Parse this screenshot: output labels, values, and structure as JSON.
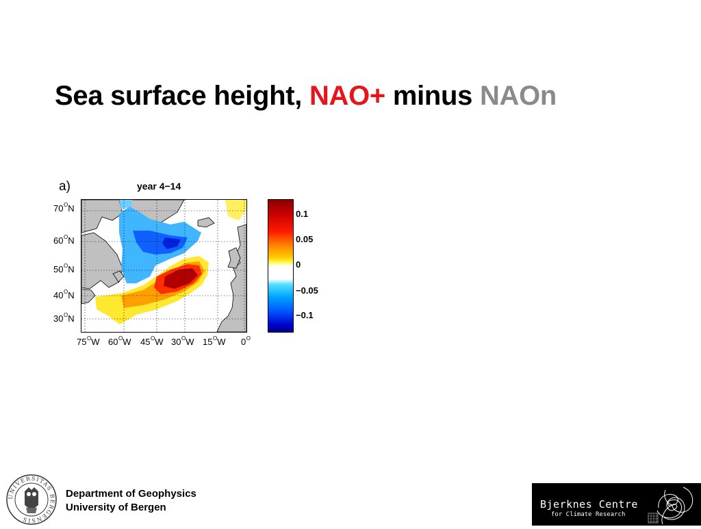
{
  "title": {
    "part1": "Sea surface height,",
    "part2": "NAO+",
    "part3": "minus",
    "part4": "NAOn",
    "colors": {
      "highlight": "#e8141c",
      "muted": "#8a8a8a"
    }
  },
  "figure": {
    "panel_label": "a)",
    "map_title": "year 4−14",
    "lat_labels": [
      "70",
      "60",
      "50",
      "40",
      "30"
    ],
    "lat_suffix": "N",
    "lon_labels": [
      "75",
      "60",
      "45",
      "30",
      "15",
      "0"
    ],
    "lon_suffix": "W",
    "degree_mark": "O",
    "colorbar_ticks": [
      "0.1",
      "0.05",
      "0",
      "−0.05",
      "−0.1"
    ],
    "colorbar_colors": [
      "#8b0000",
      "#ff1a00",
      "#ffd000",
      "#ffffff",
      "#00a8ff",
      "#0000c8",
      "#00008b"
    ]
  },
  "footer": {
    "dept_line1": "Department of Geophysics",
    "dept_line2": "University of Bergen",
    "seal_text": "UNIVERSITAS BERGENSIS",
    "partner_name": "Bjerknes Centre",
    "partner_sub": "for Climate Research"
  }
}
